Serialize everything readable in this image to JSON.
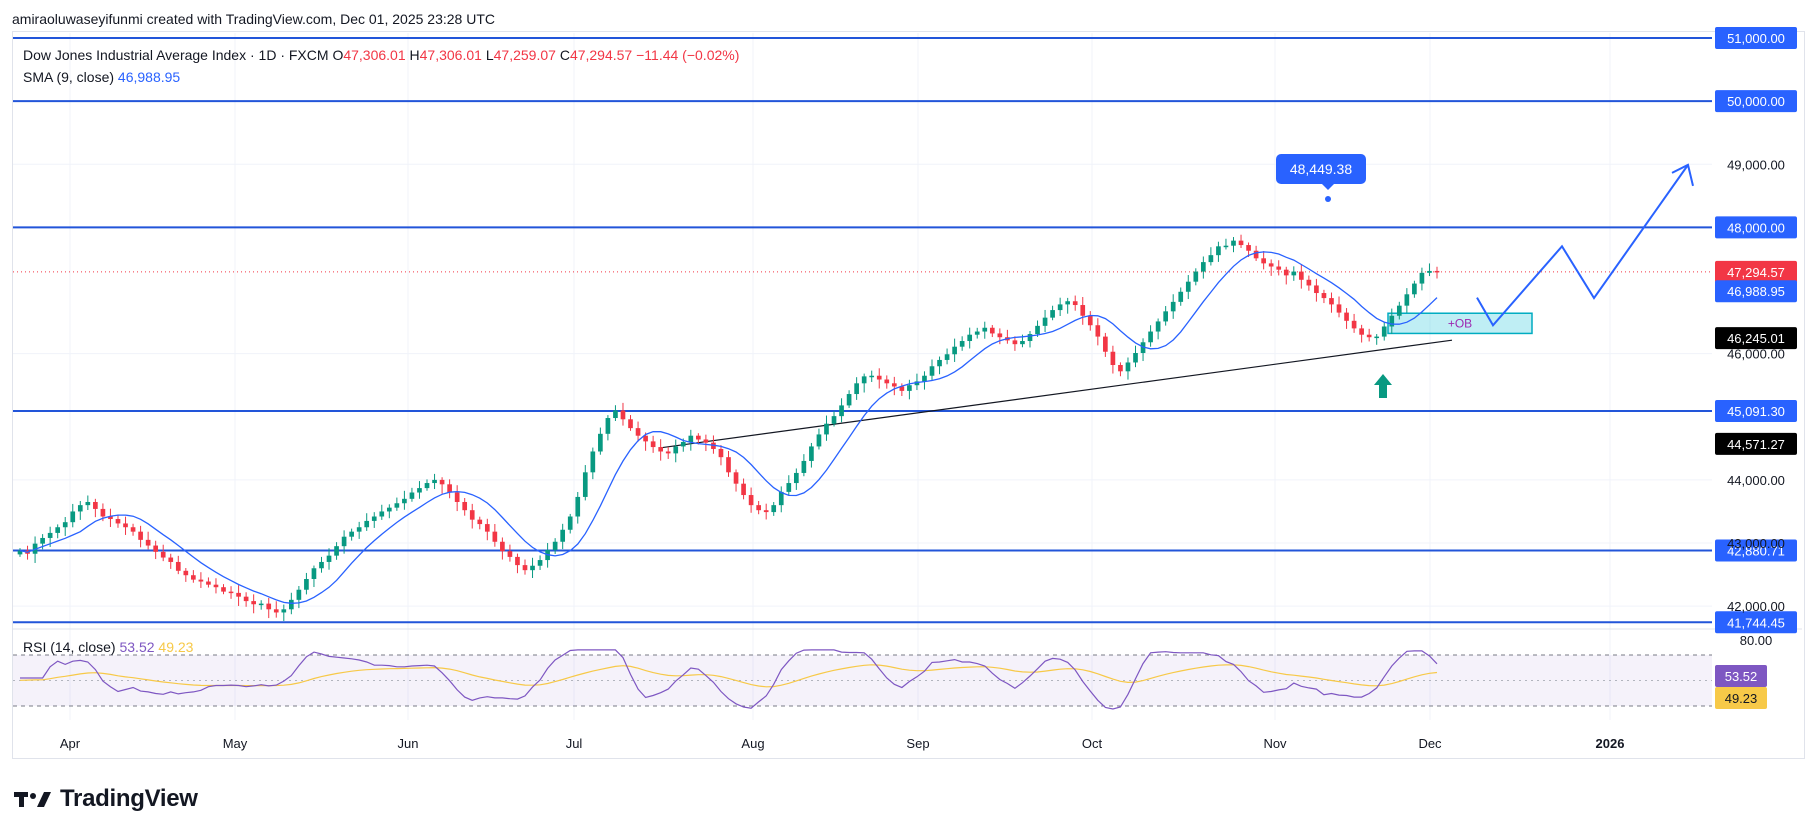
{
  "header": {
    "text": "amiraoluwaseyifunmi created with TradingView.com, Dec 01, 2025 23:28 UTC"
  },
  "legend": {
    "symbol": "Dow Jones Industrial Average Index · 1D · FXCM",
    "o_label": "O",
    "o_value": "47,306.01",
    "h_label": "H",
    "h_value": "47,306.01",
    "l_label": "L",
    "l_value": "47,259.07",
    "c_label": "C",
    "c_value": "47,294.57",
    "change": "−11.44 (−0.02%)",
    "sma_label": "SMA (9, close)",
    "sma_value": "46,988.95"
  },
  "rsi_legend": {
    "label": "RSI (14, close)",
    "value1": "53.52",
    "value2": "49.23"
  },
  "footer": {
    "brand": "TradingView"
  },
  "chart_data": {
    "type": "candlestick",
    "price_axis": {
      "ticks": [
        "49,000.00",
        "46,000.00",
        "44,000.00",
        "43,000.00",
        "42,000.00"
      ],
      "ylim": [
        41700,
        51200
      ]
    },
    "time_axis": {
      "labels": [
        "Apr",
        "May",
        "Jun",
        "Jul",
        "Aug",
        "Sep",
        "Oct",
        "Nov",
        "Dec",
        "2026"
      ]
    },
    "horizontal_levels": [
      {
        "label": "51,000.00",
        "value": 51000
      },
      {
        "label": "50,000.00",
        "value": 50000
      },
      {
        "label": "48,000.00",
        "value": 48000
      },
      {
        "label": "45,091.30",
        "value": 45091.3
      },
      {
        "label": "42,880.71",
        "value": 42880.71
      },
      {
        "label": "41,744.45",
        "value": 41744.45
      }
    ],
    "price_labels": [
      {
        "label": "47,294.57",
        "value": 47294.57,
        "color": "#f23645"
      },
      {
        "label": "46,988.95",
        "value": 46988.95,
        "color": "#2962ff"
      },
      {
        "label": "46,245.01",
        "value": 46245.01,
        "color": "#000000"
      },
      {
        "label": "44,571.27",
        "value": 44571.27,
        "color": "#000000"
      }
    ],
    "high_callout": {
      "label": "48,449.38",
      "value": 48449.38
    },
    "order_block": {
      "label": "+OB",
      "top": 46640,
      "bottom": 46320
    },
    "closes": [
      42880,
      42830,
      42990,
      43080,
      43160,
      43250,
      43330,
      43500,
      43600,
      43650,
      43540,
      43420,
      43380,
      43310,
      43250,
      43180,
      43050,
      42960,
      42860,
      42770,
      42700,
      42560,
      42490,
      42420,
      42390,
      42340,
      42300,
      42230,
      42210,
      42150,
      42080,
      42030,
      42040,
      41950,
      41900,
      41950,
      42100,
      42260,
      42430,
      42600,
      42700,
      42800,
      42950,
      43100,
      43180,
      43250,
      43350,
      43420,
      43500,
      43560,
      43630,
      43700,
      43800,
      43870,
      43950,
      44000,
      43930,
      43800,
      43650,
      43520,
      43370,
      43300,
      43180,
      43020,
      42870,
      42780,
      42650,
      42570,
      42640,
      42730,
      42890,
      43020,
      43210,
      43420,
      43730,
      44120,
      44450,
      44730,
      44980,
      45100,
      44960,
      44820,
      44700,
      44610,
      44520,
      44450,
      44420,
      44530,
      44600,
      44700,
      44640,
      44590,
      44490,
      44360,
      44120,
      43940,
      43760,
      43600,
      43520,
      43490,
      43600,
      43810,
      43950,
      44110,
      44300,
      44530,
      44720,
      44890,
      45010,
      45180,
      45360,
      45530,
      45640,
      45650,
      45590,
      45530,
      45480,
      45410,
      45500,
      45560,
      45650,
      45800,
      45900,
      45990,
      46110,
      46200,
      46300,
      46350,
      46410,
      46320,
      46260,
      46210,
      46150,
      46200,
      46310,
      46440,
      46570,
      46690,
      46780,
      46830,
      46770,
      46600,
      46450,
      46270,
      46030,
      45820,
      45720,
      45860,
      46010,
      46180,
      46350,
      46510,
      46670,
      46820,
      46980,
      47140,
      47300,
      47450,
      47560,
      47700,
      47710,
      47790,
      47720,
      47630,
      47510,
      47430,
      47380,
      47330,
      47240,
      47300,
      47170,
      47080,
      46960,
      46880,
      46780,
      46650,
      46520,
      46400,
      46300,
      46260,
      46270,
      46430,
      46600,
      46760,
      46940,
      47110,
      47280,
      47310,
      47294
    ]
  }
}
